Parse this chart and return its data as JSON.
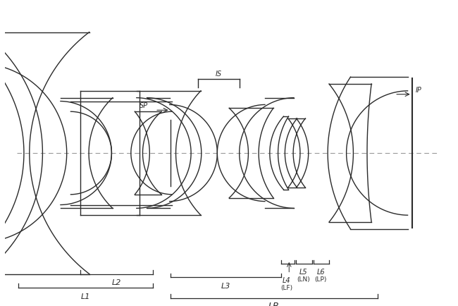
{
  "bg_color": "#ffffff",
  "line_color": "#2a2a2a",
  "figsize": [
    6.5,
    4.34
  ],
  "dpi": 100,
  "xlim": [
    0,
    650
  ],
  "ylim": [
    -217,
    217
  ],
  "optical_axis_y": 0
}
